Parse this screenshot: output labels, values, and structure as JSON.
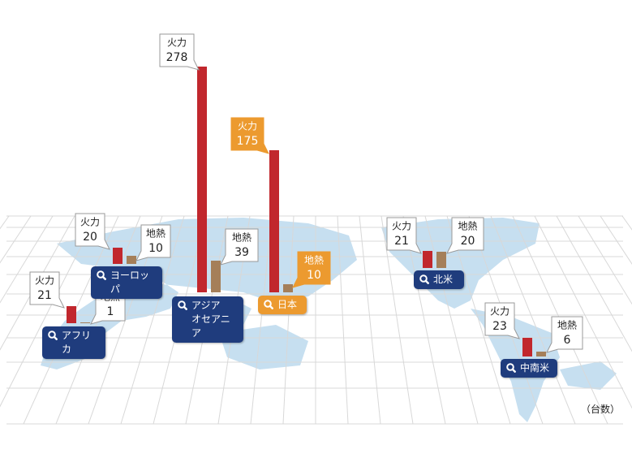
{
  "unit": "（台数）",
  "regions": [
    {
      "name": "ヨーロッパ",
      "highlight": false,
      "thermal": {
        "label": "火力",
        "value": 20
      },
      "geothermal": {
        "label": "地熱",
        "value": 10
      }
    },
    {
      "name": "アフリカ",
      "highlight": false,
      "thermal": {
        "label": "火力",
        "value": 21
      },
      "geothermal": {
        "label": "地熱",
        "value": 1
      }
    },
    {
      "name": "アジア\nオセアニア",
      "highlight": false,
      "thermal": {
        "label": "火力",
        "value": 278
      },
      "geothermal": {
        "label": "地熱",
        "value": 39
      }
    },
    {
      "name": "日本",
      "highlight": true,
      "thermal": {
        "label": "火力",
        "value": 175
      },
      "geothermal": {
        "label": "地熱",
        "value": 10
      }
    },
    {
      "name": "北米",
      "highlight": false,
      "thermal": {
        "label": "火力",
        "value": 21
      },
      "geothermal": {
        "label": "地熱",
        "value": 20
      }
    },
    {
      "name": "中南米",
      "highlight": false,
      "thermal": {
        "label": "火力",
        "value": 23
      },
      "geothermal": {
        "label": "地熱",
        "value": 6
      }
    }
  ],
  "colors": {
    "thermal": "#c1272d",
    "geothermal": "#a57f59",
    "label": "#1f3c7d",
    "highlight": "#ec9a2f"
  }
}
